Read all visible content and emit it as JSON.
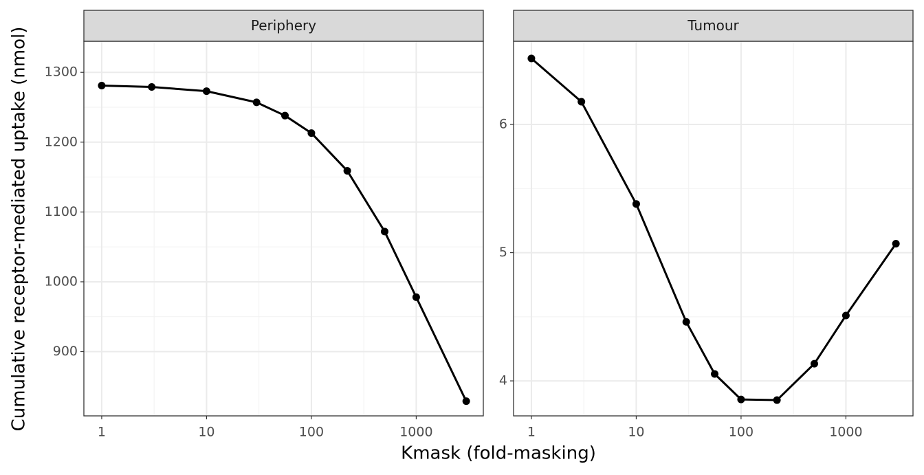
{
  "xlabel": "Kmask (fold-masking)",
  "ylabel": "Cumulative receptor-mediated uptake (nmol)",
  "chart_data": [
    {
      "type": "line",
      "title": "Periphery",
      "log_x": true,
      "grid": true,
      "x": [
        1,
        3,
        10,
        30,
        56,
        100,
        220,
        500,
        1000,
        3000
      ],
      "series": [
        {
          "color": "#000000",
          "values": [
            1281,
            1279,
            1273,
            1257,
            1238,
            1213,
            1159,
            1072,
            978,
            829
          ]
        }
      ],
      "xlim": [
        0.676,
        4365
      ],
      "xticks": [
        1,
        10,
        100,
        1000
      ],
      "ylim": [
        808,
        1344.5
      ],
      "yticks": [
        900,
        1000,
        1100,
        1200,
        1300
      ]
    },
    {
      "type": "line",
      "title": "Tumour",
      "log_x": true,
      "grid": true,
      "x": [
        1,
        3,
        10,
        30,
        56,
        100,
        220,
        500,
        1000,
        3000
      ],
      "series": [
        {
          "color": "#000000",
          "values": [
            6.515,
            6.177,
            5.38,
            4.46,
            4.054,
            3.855,
            3.85,
            4.134,
            4.51,
            5.07
          ]
        }
      ],
      "xlim": [
        0.676,
        4365
      ],
      "xticks": [
        1,
        10,
        100,
        1000
      ],
      "ylim": [
        3.727,
        6.649
      ],
      "yticks": [
        4,
        5,
        6
      ]
    }
  ]
}
